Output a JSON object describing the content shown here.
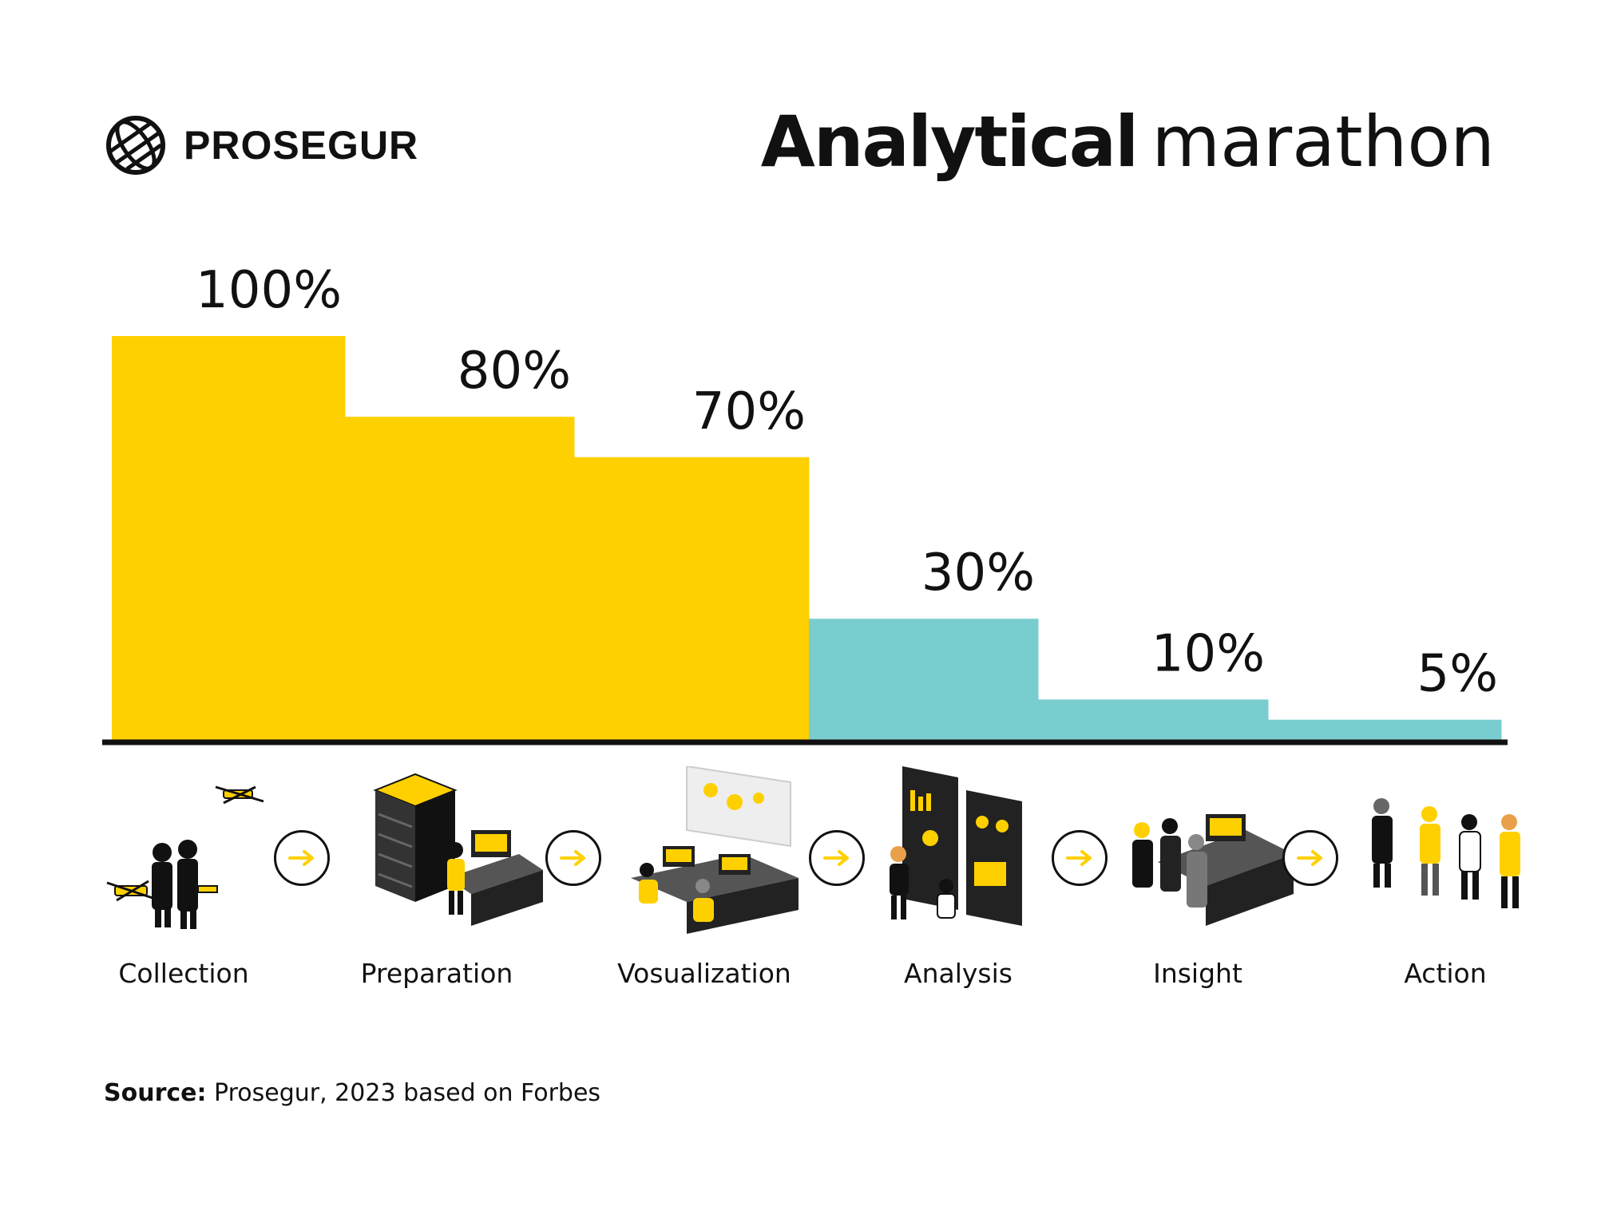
{
  "brand": {
    "name": "PROSEGUR",
    "logo_icon": "globe-icon"
  },
  "title": {
    "bold": "Analytical",
    "light": "marathon"
  },
  "chart_data": {
    "type": "bar",
    "title": "Analytical marathon",
    "categories": [
      "Collection",
      "Preparation",
      "Vosualization",
      "Analysis",
      "Insight",
      "Action"
    ],
    "values": [
      100,
      80,
      70,
      30,
      10,
      5
    ],
    "data_labels": [
      "100%",
      "80%",
      "70%",
      "30%",
      "10%",
      "5%"
    ],
    "colors": [
      "#FFD000",
      "#FFD000",
      "#FFD000",
      "#7ACDCF",
      "#7ACDCF",
      "#7ACDCF"
    ],
    "ylim": [
      0,
      100
    ],
    "bar_gap": "none (step shape)",
    "grid": false,
    "legend": "none"
  },
  "stages": [
    {
      "label": "Collection",
      "icon": "drone-operators-icon"
    },
    {
      "label": "Preparation",
      "icon": "server-workstation-icon"
    },
    {
      "label": "Vosualization",
      "icon": "monitoring-room-icon"
    },
    {
      "label": "Analysis",
      "icon": "dashboard-analysts-icon"
    },
    {
      "label": "Insight",
      "icon": "team-meeting-icon"
    },
    {
      "label": "Action",
      "icon": "field-team-icon"
    }
  ],
  "arrow_icon": "arrow-right-icon",
  "source": {
    "key": "Source:",
    "text": " Prosegur, 2023 based on Forbes"
  },
  "accent": {
    "yellow": "#FFD000",
    "teal": "#7ACDCF",
    "black": "#111111"
  }
}
